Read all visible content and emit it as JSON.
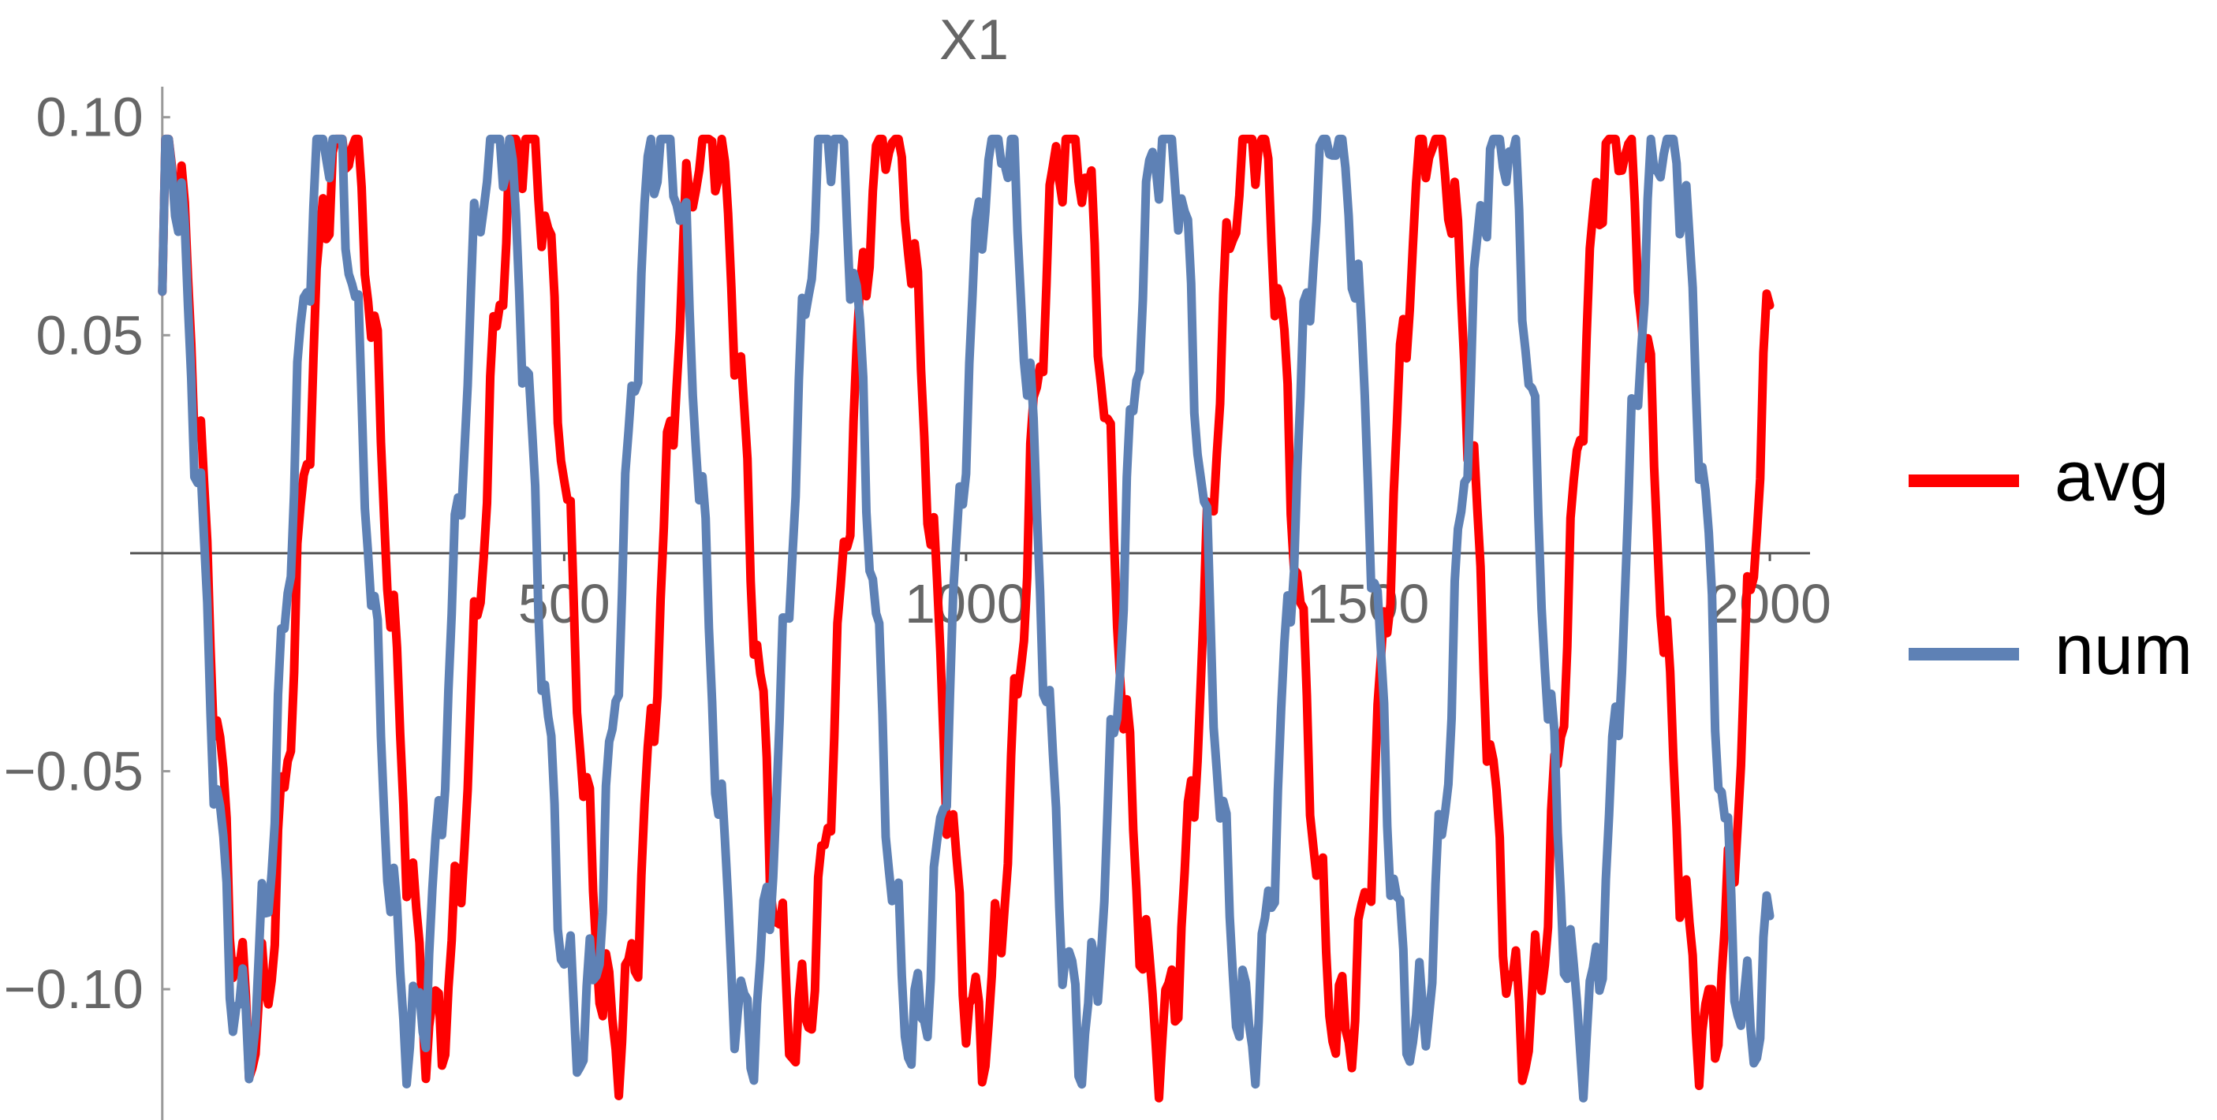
{
  "chart_data": {
    "type": "line",
    "title": "X1",
    "xlabel": "",
    "ylabel": "",
    "xlim": [
      -40,
      2050
    ],
    "ylim": [
      -0.13,
      0.107
    ],
    "x_ticks": [
      500,
      1000,
      1500,
      2000
    ],
    "x_tick_labels": [
      "500",
      "1000",
      "1500",
      "2000"
    ],
    "y_ticks": [
      0.1,
      0.05,
      -0.05,
      -0.1
    ],
    "y_tick_labels": [
      "0.10",
      "0.05",
      "−0.05",
      "−0.10"
    ],
    "grid": false,
    "legend_position": "right",
    "series": [
      {
        "name": "avg",
        "color": "#ff0000",
        "model": {
          "x_start": 0,
          "x_end": 2000,
          "step": 4,
          "initial_value": 0.06,
          "main_amplitude": 0.105,
          "main_period": 226,
          "main_phase_at_x0": 1.57,
          "ripple_amplitude": 0.012,
          "ripple_period": 24
        }
      },
      {
        "name": "num",
        "color": "#5e81b5",
        "model": {
          "x_start": 0,
          "x_end": 2000,
          "step": 4,
          "initial_value": 0.06,
          "main_amplitude": 0.105,
          "main_period": 208,
          "main_phase_at_x0": 1.57,
          "ripple_amplitude": 0.012,
          "ripple_period": 24
        }
      }
    ]
  }
}
